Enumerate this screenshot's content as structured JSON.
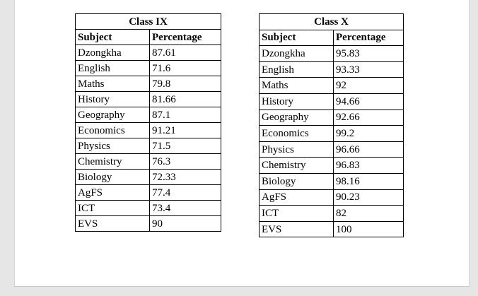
{
  "class_ix": {
    "title": "Class IX",
    "headers": [
      "Subject",
      "Percentage"
    ],
    "rows": [
      [
        "Dzongkha",
        "87.61"
      ],
      [
        "English",
        "71.6"
      ],
      [
        "Maths",
        "79.8"
      ],
      [
        "History",
        "81.66"
      ],
      [
        "Geography",
        "87.1"
      ],
      [
        "Economics",
        "91.21"
      ],
      [
        "Physics",
        "71.5"
      ],
      [
        "Chemistry",
        "76.3"
      ],
      [
        "Biology",
        "72.33"
      ],
      [
        "AgFS",
        "77.4"
      ],
      [
        "ICT",
        "73.4"
      ],
      [
        "EVS",
        "90"
      ]
    ]
  },
  "class_x": {
    "title": "Class X",
    "headers": [
      "Subject",
      "Percentage"
    ],
    "rows": [
      [
        "Dzongkha",
        "95.83"
      ],
      [
        "English",
        "93.33"
      ],
      [
        "Maths",
        "92"
      ],
      [
        "History",
        "94.66"
      ],
      [
        "Geography",
        "92.66"
      ],
      [
        "Economics",
        "99.2"
      ],
      [
        "Physics",
        "96.66"
      ],
      [
        "Chemistry",
        "96.83"
      ],
      [
        "Biology",
        "98.16"
      ],
      [
        "AgFS",
        "90.23"
      ],
      [
        "ICT",
        "82"
      ],
      [
        "EVS",
        "100"
      ]
    ]
  }
}
